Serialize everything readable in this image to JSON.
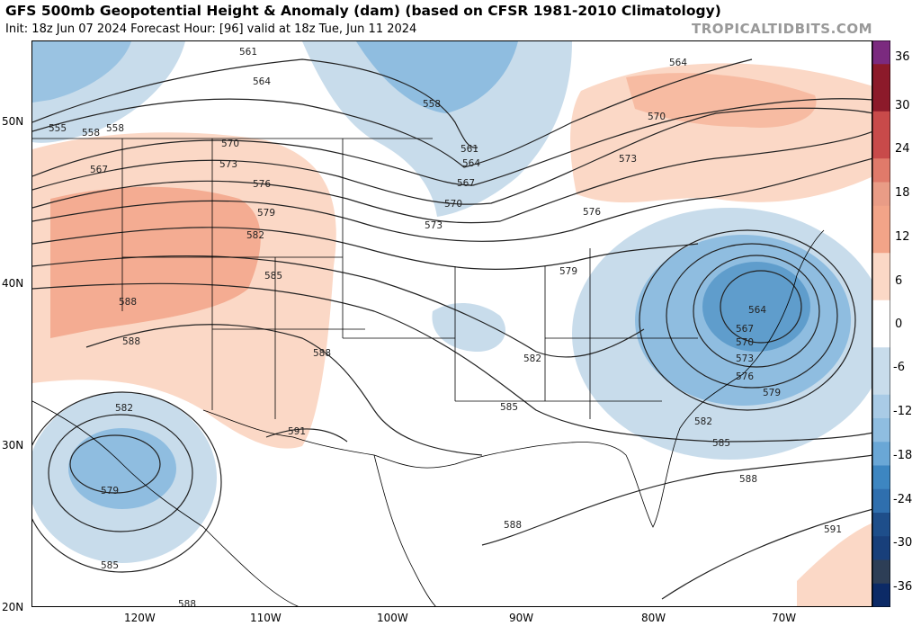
{
  "header": {
    "title": "GFS 500mb Geopotential Height & Anomaly (dam) (based on CFSR 1981-2010 Climatology)",
    "subtitle": "Init: 18z Jun 07 2024   Forecast Hour: [96]   valid at 18z Tue, Jun 11 2024",
    "credit": "TROPICALTIDBITS.COM"
  },
  "map": {
    "lat_labels": [
      "50N",
      "40N",
      "30N",
      "20N"
    ],
    "lon_labels": [
      "120W",
      "110W",
      "100W",
      "90W",
      "80W",
      "70W"
    ],
    "contour_labels": [
      "561",
      "564",
      "558",
      "555",
      "558",
      "567",
      "570",
      "573",
      "576",
      "579",
      "582",
      "585",
      "588",
      "588",
      "591",
      "582",
      "579",
      "585",
      "588",
      "558",
      "561",
      "564",
      "567",
      "570",
      "573",
      "564",
      "570",
      "573",
      "576",
      "579",
      "585",
      "582",
      "588",
      "564",
      "567",
      "570",
      "573",
      "576",
      "579",
      "582",
      "585",
      "588",
      "588",
      "591"
    ]
  },
  "colorbar": {
    "tick_labels": [
      "36",
      "30",
      "24",
      "18",
      "12",
      "6",
      "0",
      "-6",
      "-12",
      "-18",
      "-24",
      "-30",
      "-36"
    ],
    "colors": {
      "pos_max": "#7b2a7f",
      "pos_dark": "#8c1a2a",
      "pos_mid": "#c84a4a",
      "pos_light": "#f2a488",
      "pos_faint": "#fbd8c6",
      "neutral": "#ffffff",
      "neg_faint": "#c8dceb",
      "neg_light": "#8fbde0",
      "neg_mid": "#3d86c1",
      "neg_dark": "#1e4e8a",
      "neg_max": "#0c2a66"
    }
  }
}
